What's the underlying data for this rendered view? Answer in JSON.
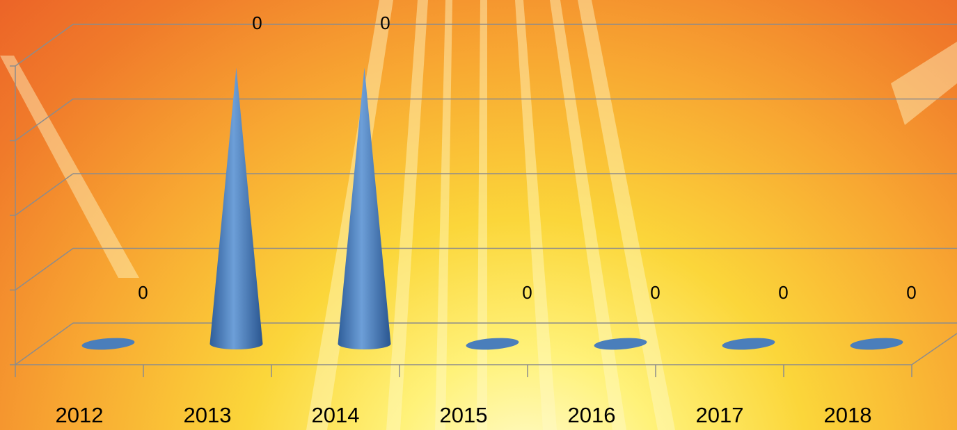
{
  "chart_data": {
    "type": "cone",
    "categories": [
      "2012",
      "2013",
      "2014",
      "2015",
      "2016",
      "2017",
      "2018"
    ],
    "values": [
      0,
      0.37,
      0.37,
      0,
      0,
      0,
      0
    ],
    "value_labels": [
      "0",
      "0",
      "0",
      "0",
      "0",
      "0",
      "0"
    ],
    "color": "#4a7ebb",
    "ylim": [
      0,
      0.4
    ],
    "yticks": [
      0,
      0.1,
      0.2,
      0.3,
      0.4
    ],
    "grid": true
  }
}
